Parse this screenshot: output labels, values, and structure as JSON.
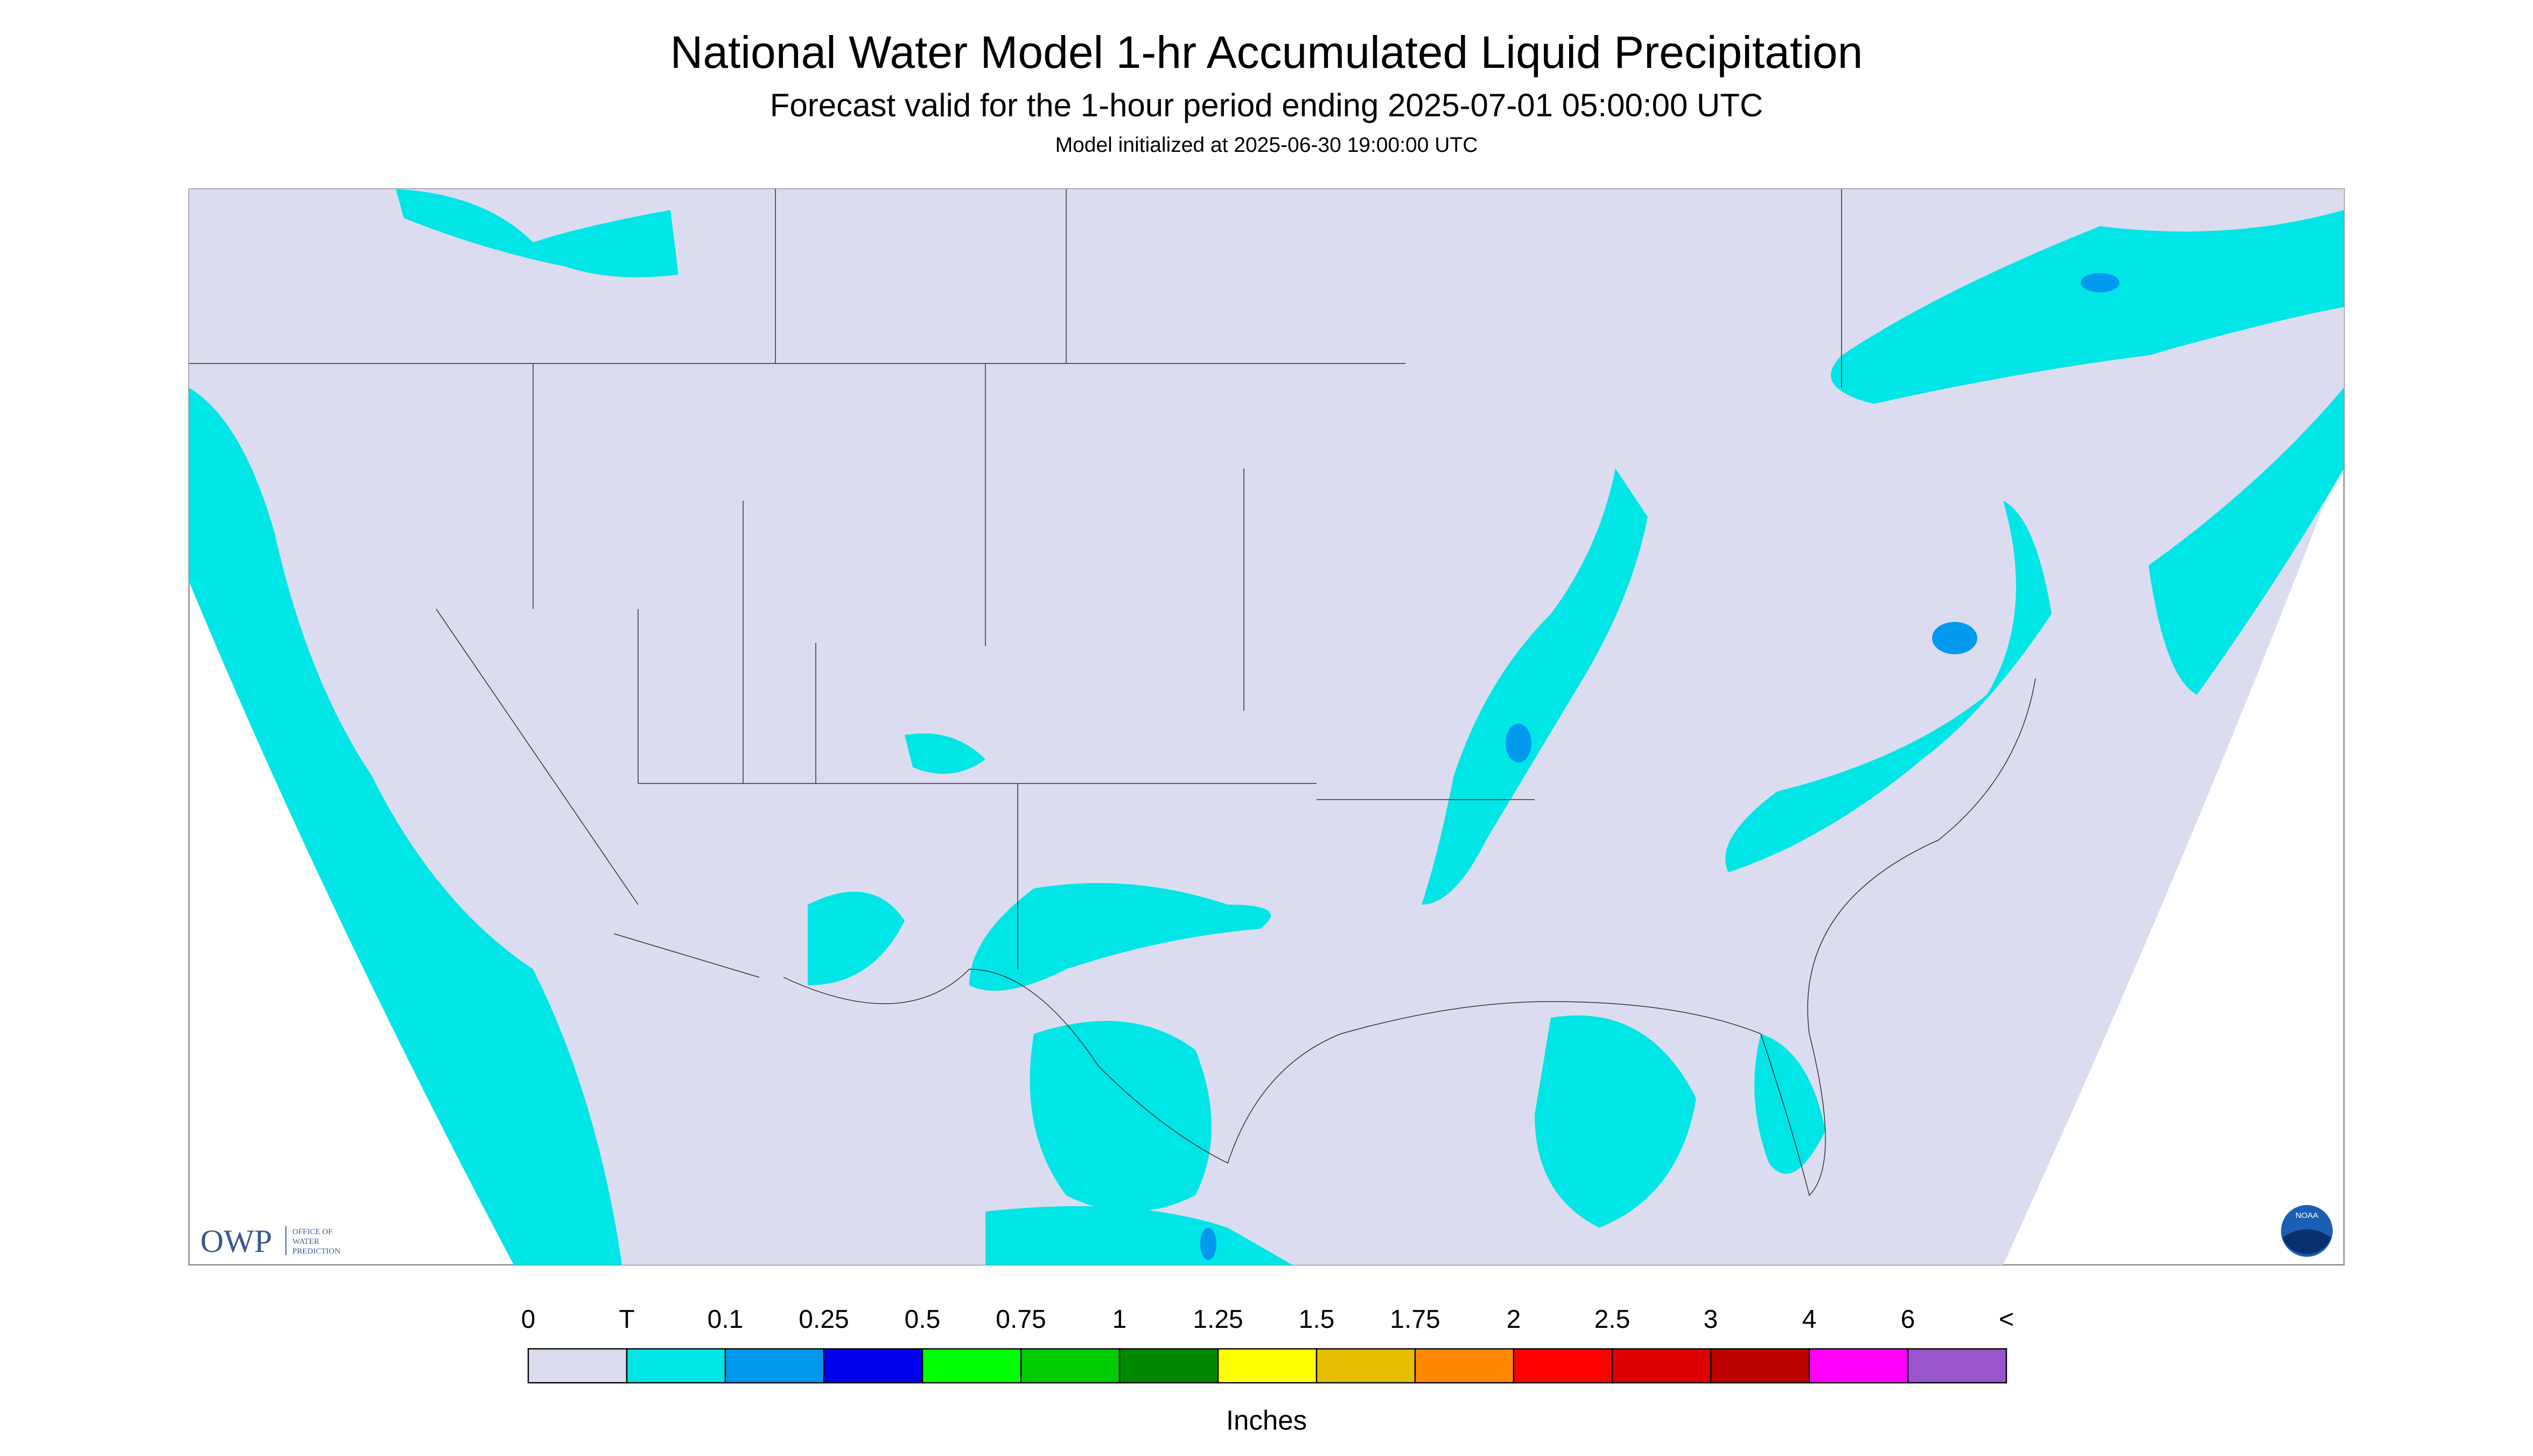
{
  "header": {
    "title": "National Water Model 1-hr Accumulated Liquid Precipitation",
    "subtitle": "Forecast valid for the 1-hour period ending 2025-07-01 05:00:00 UTC",
    "init": "Model initialized at 2025-06-30 19:00:00 UTC"
  },
  "legend": {
    "labels": [
      "0",
      "T",
      "0.1",
      "0.25",
      "0.5",
      "0.75",
      "1",
      "1.25",
      "1.5",
      "1.75",
      "2",
      "2.5",
      "3",
      "4",
      "6",
      "<"
    ],
    "colors": [
      "#dcdcf0",
      "#00e5e5",
      "#0099ee",
      "#0000ee",
      "#00ff00",
      "#00cc00",
      "#008800",
      "#ffff00",
      "#e6c000",
      "#ff8800",
      "#ff0000",
      "#dd0000",
      "#bb0000",
      "#ff00ff",
      "#9955cc"
    ],
    "unit": "Inches"
  },
  "logo": {
    "acronym": "OWP",
    "lines": [
      "OFFICE OF",
      "WATER",
      "PREDICTION"
    ]
  },
  "badge": "NOAA"
}
